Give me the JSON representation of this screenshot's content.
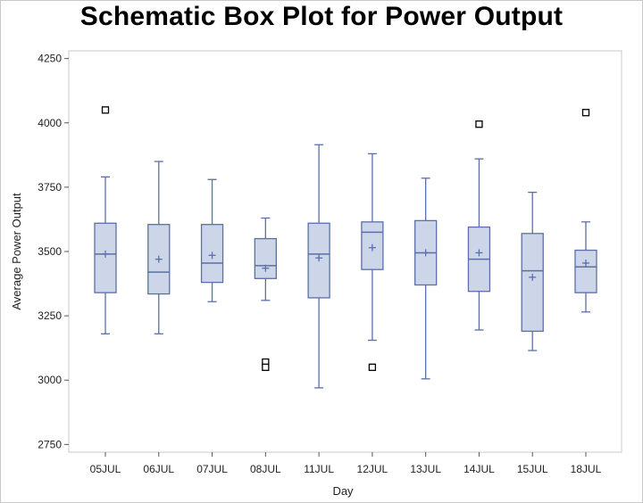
{
  "chart_data": {
    "type": "box",
    "title": "Schematic Box Plot for Power Output",
    "xlabel": "Day",
    "ylabel": "Average Power Output",
    "ylim": [
      2720,
      4280
    ],
    "yticks": [
      2750,
      3000,
      3250,
      3500,
      3750,
      4000,
      4250
    ],
    "grid": false,
    "colors": {
      "box_fill": "#cdd6e8",
      "box_stroke": "#5a6fa8",
      "outlier": "#000000",
      "frame": "#c8c8c8"
    },
    "categories": [
      "05JUL",
      "06JUL",
      "07JUL",
      "08JUL",
      "11JUL",
      "12JUL",
      "13JUL",
      "14JUL",
      "15JUL",
      "18JUL"
    ],
    "boxes": [
      {
        "category": "05JUL",
        "whisker_low": 3180,
        "q1": 3340,
        "median": 3490,
        "q3": 3610,
        "whisker_high": 3790,
        "mean": 3490,
        "outliers": [
          4050
        ]
      },
      {
        "category": "06JUL",
        "whisker_low": 3180,
        "q1": 3335,
        "median": 3420,
        "q3": 3605,
        "whisker_high": 3850,
        "mean": 3470,
        "outliers": []
      },
      {
        "category": "07JUL",
        "whisker_low": 3305,
        "q1": 3380,
        "median": 3455,
        "q3": 3605,
        "whisker_high": 3780,
        "mean": 3485,
        "outliers": []
      },
      {
        "category": "08JUL",
        "whisker_low": 3310,
        "q1": 3395,
        "median": 3445,
        "q3": 3550,
        "whisker_high": 3630,
        "mean": 3435,
        "outliers": [
          3070,
          3050
        ]
      },
      {
        "category": "11JUL",
        "whisker_low": 2970,
        "q1": 3320,
        "median": 3490,
        "q3": 3610,
        "whisker_high": 3915,
        "mean": 3475,
        "outliers": []
      },
      {
        "category": "12JUL",
        "whisker_low": 3155,
        "q1": 3430,
        "median": 3575,
        "q3": 3615,
        "whisker_high": 3880,
        "mean": 3515,
        "outliers": [
          3050
        ]
      },
      {
        "category": "13JUL",
        "whisker_low": 3005,
        "q1": 3370,
        "median": 3495,
        "q3": 3620,
        "whisker_high": 3785,
        "mean": 3495,
        "outliers": []
      },
      {
        "category": "14JUL",
        "whisker_low": 3195,
        "q1": 3345,
        "median": 3470,
        "q3": 3595,
        "whisker_high": 3860,
        "mean": 3495,
        "outliers": [
          3995
        ]
      },
      {
        "category": "15JUL",
        "whisker_low": 3115,
        "q1": 3190,
        "median": 3425,
        "q3": 3570,
        "whisker_high": 3730,
        "mean": 3400,
        "outliers": []
      },
      {
        "category": "18JUL",
        "whisker_low": 3265,
        "q1": 3340,
        "median": 3440,
        "q3": 3505,
        "whisker_high": 3615,
        "mean": 3455,
        "outliers": [
          4040
        ]
      }
    ]
  }
}
